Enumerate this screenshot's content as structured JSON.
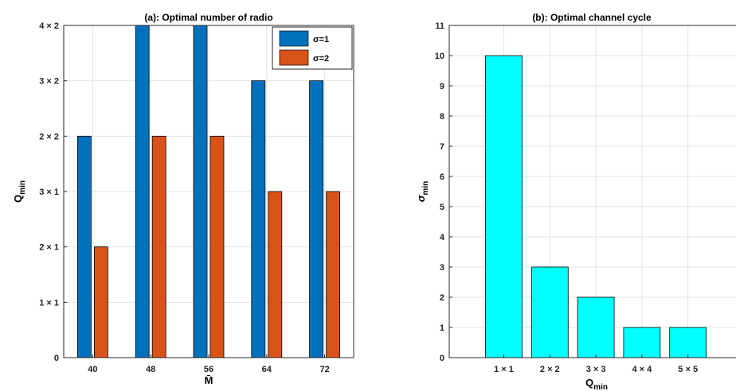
{
  "colors": {
    "sigma1": "#0072BD",
    "sigma2": "#D95319",
    "cyan": "#00FFFF",
    "grid": "#e3e3e3"
  },
  "chart_data": [
    {
      "type": "bar",
      "title": "(a): Optimal number of radio",
      "xlabel": "M̄",
      "ylabel_main": "Q",
      "ylabel_sub": "min",
      "categories": [
        "40",
        "48",
        "56",
        "64",
        "72"
      ],
      "ytick_labels": [
        "0",
        "1 × 1",
        "2 × 1",
        "3 × 1",
        "2 × 2",
        "3 × 2",
        "4 × 2"
      ],
      "ylim": [
        0,
        6
      ],
      "grid": true,
      "legend_position": "top-right",
      "series": [
        {
          "name": "σ=1",
          "values": [
            4,
            6,
            6,
            5,
            5
          ]
        },
        {
          "name": "σ=2",
          "values": [
            2,
            4,
            4,
            3,
            3
          ]
        }
      ]
    },
    {
      "type": "bar",
      "title": "(b): Optimal channel cycle",
      "xlabel_main": "Q",
      "xlabel_sub": "min",
      "ylabel_main": "σ",
      "ylabel_sub": "min",
      "categories": [
        "1 × 1",
        "2 × 2",
        "3 × 3",
        "4 × 4",
        "5 × 5"
      ],
      "values": [
        10,
        3,
        2,
        1,
        1
      ],
      "ylim": [
        0,
        11
      ],
      "yticks": [
        "0",
        "1",
        "2",
        "3",
        "4",
        "5",
        "6",
        "7",
        "8",
        "9",
        "10",
        "11"
      ],
      "grid": true
    }
  ]
}
